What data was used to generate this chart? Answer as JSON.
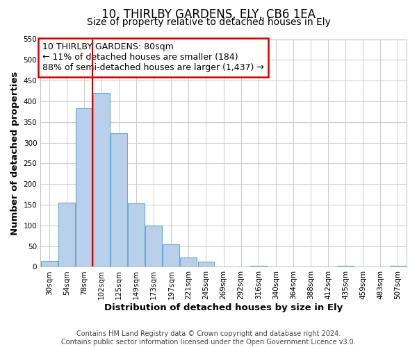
{
  "title": "10, THIRLBY GARDENS, ELY, CB6 1EA",
  "subtitle": "Size of property relative to detached houses in Ely",
  "xlabel": "Distribution of detached houses by size in Ely",
  "ylabel": "Number of detached properties",
  "footer_line1": "Contains HM Land Registry data © Crown copyright and database right 2024.",
  "footer_line2": "Contains public sector information licensed under the Open Government Licence v3.0.",
  "annotation_line1": "10 THIRLBY GARDENS: 80sqm",
  "annotation_line2": "← 11% of detached houses are smaller (184)",
  "annotation_line3": "88% of semi-detached houses are larger (1,437) →",
  "bar_labels": [
    "30sqm",
    "54sqm",
    "78sqm",
    "102sqm",
    "125sqm",
    "149sqm",
    "173sqm",
    "197sqm",
    "221sqm",
    "245sqm",
    "269sqm",
    "292sqm",
    "316sqm",
    "340sqm",
    "364sqm",
    "388sqm",
    "412sqm",
    "435sqm",
    "459sqm",
    "483sqm",
    "507sqm"
  ],
  "bar_values": [
    15,
    155,
    383,
    420,
    323,
    153,
    100,
    55,
    22,
    12,
    0,
    0,
    2,
    0,
    0,
    0,
    0,
    2,
    0,
    0,
    2
  ],
  "bar_color": "#b8d0ea",
  "bar_edge_color": "#6aaad4",
  "vline_color": "#cc0000",
  "ylim": [
    0,
    550
  ],
  "yticks": [
    0,
    50,
    100,
    150,
    200,
    250,
    300,
    350,
    400,
    450,
    500,
    550
  ],
  "annotation_box_color": "#cc0000",
  "background_color": "#ffffff",
  "grid_color": "#cccccc",
  "title_fontsize": 12,
  "subtitle_fontsize": 10,
  "axis_label_fontsize": 9.5,
  "tick_fontsize": 7.5,
  "annotation_fontsize": 9,
  "footer_fontsize": 7
}
